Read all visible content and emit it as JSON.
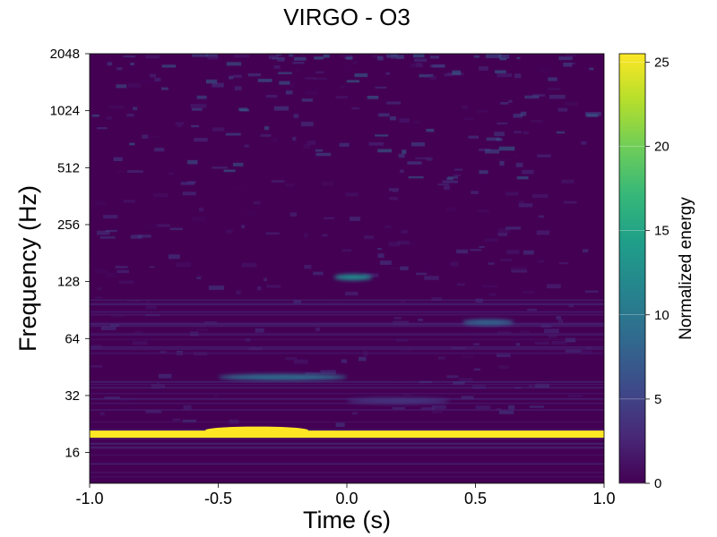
{
  "chart_data": {
    "type": "heatmap",
    "title": "VIRGO - O3",
    "xlabel": "Time (s)",
    "ylabel": "Frequency (Hz)",
    "x_range": [
      -1.0,
      1.0
    ],
    "x_ticks": [
      -1.0,
      -0.5,
      0.0,
      0.5,
      1.0
    ],
    "x_tick_labels": [
      "-1.0",
      "-0.5",
      "0.0",
      "0.5",
      "1.0"
    ],
    "y_scale": "log2",
    "y_range": [
      11,
      2048
    ],
    "y_ticks": [
      16,
      32,
      64,
      128,
      256,
      512,
      1024,
      2048
    ],
    "y_tick_labels": [
      "16",
      "32",
      "64",
      "128",
      "256",
      "512",
      "1024",
      "2048"
    ],
    "colormap": "viridis",
    "colorbar": {
      "label": "Normalized energy",
      "range": [
        0,
        25.5
      ],
      "ticks": [
        0,
        5,
        10,
        15,
        20,
        25
      ],
      "tick_labels": [
        "0",
        "5",
        "10",
        "15",
        "20",
        "25"
      ]
    },
    "features": [
      {
        "t_start": -1.0,
        "t_end": 1.0,
        "freq": 20,
        "energy": 25.5
      },
      {
        "t_start": -0.55,
        "t_end": -0.15,
        "freq": 21,
        "energy": 25.5
      },
      {
        "t_start": -0.5,
        "t_end": 0.0,
        "freq": 40,
        "energy": 9
      },
      {
        "t_start": 0.45,
        "t_end": 0.65,
        "freq": 78,
        "energy": 8
      },
      {
        "t_start": -0.05,
        "t_end": 0.1,
        "freq": 135,
        "energy": 12
      },
      {
        "t_start": 0.0,
        "t_end": 0.4,
        "freq": 30,
        "energy": 4
      }
    ]
  }
}
